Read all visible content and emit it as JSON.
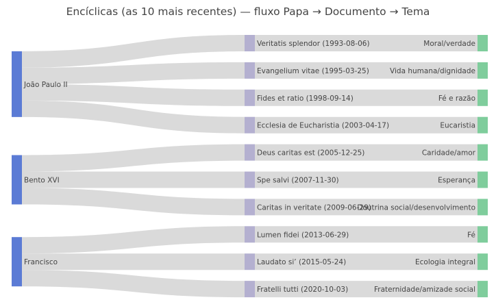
{
  "chart_data": {
    "type": "sankey",
    "title": "Encíclicas (as 10 mais recentes) — fluxo Papa → Documento → Tema",
    "colors": {
      "pope": "#5b7bd5",
      "document": "#b4b0d0",
      "theme": "#7fcd9c",
      "link": "#d4d4d4",
      "text": "#444444"
    },
    "popes": [
      "João Paulo II",
      "Bento XVI",
      "Francisco"
    ],
    "documents": [
      {
        "label": "Veritatis splendor (1993-08-06)",
        "pope": "João Paulo II"
      },
      {
        "label": "Evangelium vitae (1995-03-25)",
        "pope": "João Paulo II"
      },
      {
        "label": "Fides et ratio (1998-09-14)",
        "pope": "João Paulo II"
      },
      {
        "label": "Ecclesia de Eucharistia (2003-04-17)",
        "pope": "João Paulo II"
      },
      {
        "label": "Deus caritas est (2005-12-25)",
        "pope": "Bento XVI"
      },
      {
        "label": "Spe salvi (2007-11-30)",
        "pope": "Bento XVI"
      },
      {
        "label": "Caritas in veritate (2009-06-29)",
        "pope": "Bento XVI"
      },
      {
        "label": "Lumen fidei (2013-06-29)",
        "pope": "Francisco"
      },
      {
        "label": "Laudato si’ (2015-05-24)",
        "pope": "Francisco"
      },
      {
        "label": "Fratelli tutti (2020-10-03)",
        "pope": "Francisco"
      }
    ],
    "themes": [
      "Moral/verdade",
      "Vida humana/dignidade",
      "Fé e razão",
      "Eucaristia",
      "Caridade/amor",
      "Esperança",
      "Doutrina social/desenvolvimento",
      "Fé",
      "Ecologia integral",
      "Fraternidade/amizade social"
    ],
    "flow_value": 1
  }
}
